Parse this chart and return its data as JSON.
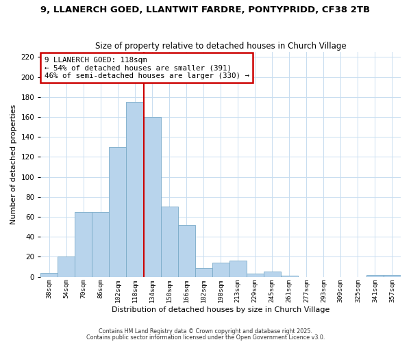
{
  "title_line1": "9, LLANERCH GOED, LLANTWIT FARDRE, PONTYPRIDD, CF38 2TB",
  "title_line2": "Size of property relative to detached houses in Church Village",
  "xlabel": "Distribution of detached houses by size in Church Village",
  "ylabel": "Number of detached properties",
  "bar_labels": [
    "38sqm",
    "54sqm",
    "70sqm",
    "86sqm",
    "102sqm",
    "118sqm",
    "134sqm",
    "150sqm",
    "166sqm",
    "182sqm",
    "198sqm",
    "213sqm",
    "229sqm",
    "245sqm",
    "261sqm",
    "277sqm",
    "293sqm",
    "309sqm",
    "325sqm",
    "341sqm",
    "357sqm"
  ],
  "bar_values": [
    4,
    20,
    65,
    65,
    130,
    175,
    160,
    70,
    52,
    9,
    14,
    16,
    3,
    5,
    1,
    0,
    0,
    0,
    0,
    2,
    2
  ],
  "bar_color": "#b8d4ec",
  "bar_edge_color": "#7aaac8",
  "vline_color": "#cc0000",
  "annotation_title": "9 LLANERCH GOED: 118sqm",
  "annotation_line2": "← 54% of detached houses are smaller (391)",
  "annotation_line3": "46% of semi-detached houses are larger (330) →",
  "annotation_box_color": "#ffffff",
  "annotation_box_edge": "#cc0000",
  "ylim": [
    0,
    225
  ],
  "yticks": [
    0,
    20,
    40,
    60,
    80,
    100,
    120,
    140,
    160,
    180,
    200,
    220
  ],
  "footer_line1": "Contains HM Land Registry data © Crown copyright and database right 2025.",
  "footer_line2": "Contains public sector information licensed under the Open Government Licence v3.0.",
  "background_color": "#ffffff",
  "grid_color": "#c8ddf0"
}
